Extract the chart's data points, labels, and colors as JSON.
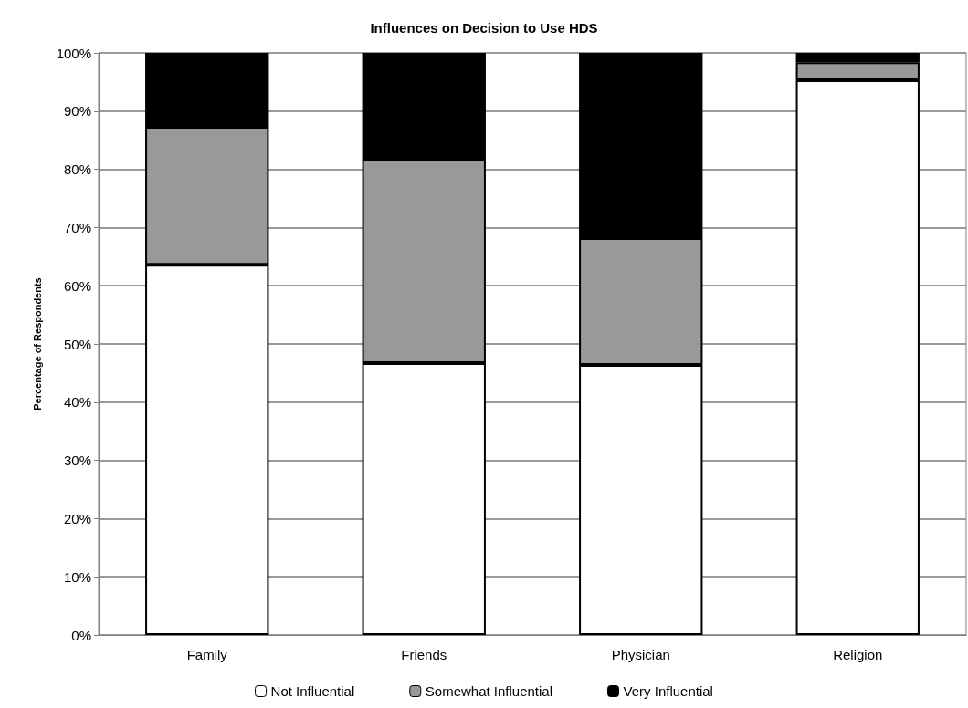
{
  "chart_data": {
    "type": "bar",
    "title": "Influences on Decision to Use HDS",
    "ylabel": "Percentage of Respondents",
    "categories": [
      "Family",
      "Friends",
      "Physician",
      "Religion"
    ],
    "series": [
      {
        "name": "Not Influential",
        "color": "#ffffff",
        "values": [
          63.6,
          46.7,
          46.4,
          95.3
        ]
      },
      {
        "name": "Somewhat Influential",
        "color": "#999999",
        "values": [
          23.7,
          35.1,
          21.8,
          3.1
        ]
      },
      {
        "name": "Very Influential",
        "color": "#000000",
        "values": [
          12.7,
          18.2,
          31.8,
          1.6
        ]
      }
    ],
    "stacked": true,
    "ylim": [
      0,
      100
    ],
    "yticks": [
      {
        "value": 0,
        "label": "0%"
      },
      {
        "value": 10,
        "label": "10%"
      },
      {
        "value": 20,
        "label": "20%"
      },
      {
        "value": 30,
        "label": "30%"
      },
      {
        "value": 40,
        "label": "40%"
      },
      {
        "value": 50,
        "label": "50%"
      },
      {
        "value": 60,
        "label": "60%"
      },
      {
        "value": 70,
        "label": "70%"
      },
      {
        "value": 80,
        "label": "80%"
      },
      {
        "value": 90,
        "label": "90%"
      },
      {
        "value": 100,
        "label": "100%"
      }
    ],
    "grid": "y",
    "legend": "bottom"
  }
}
